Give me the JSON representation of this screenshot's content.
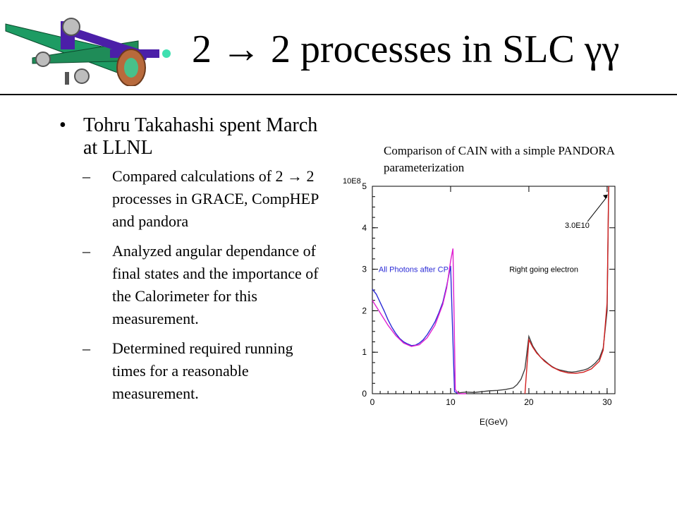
{
  "title": {
    "prefix": "2 ",
    "arrow": "→",
    "suffix": " 2 processes in SLC γγ"
  },
  "bullet": {
    "text": "Tohru Takahashi spent March at LLNL",
    "subitems": [
      "Compared calculations of 2 → 2 processes in GRACE, CompHEP and pandora",
      "Analyzed angular dependance of final states and the importance of the Calorimeter for this measurement.",
      "Determined required running times for a reasonable measurement."
    ]
  },
  "caption": "Comparison of CAIN with a simple PANDORA parameterization",
  "chart_data": {
    "type": "line",
    "xlabel": "E(GeV)",
    "y_scale_label": "10E8",
    "xlim": [
      0,
      31
    ],
    "ylim": [
      0,
      5
    ],
    "x_ticks": [
      "0",
      "10",
      "20",
      "30"
    ],
    "y_ticks": [
      "0",
      "1",
      "2",
      "3",
      "4",
      "5"
    ],
    "annotations": {
      "photons": "All Photons after CP",
      "electron": "Right going electron",
      "peak": "3.0E10"
    },
    "colors": {
      "photon_hist": "#2b2bd6",
      "photon_fit": "#e020d0",
      "electron_hist": "#404040",
      "electron_fit": "#d22020"
    },
    "series": [
      {
        "values_x": [
          0,
          0.5,
          1,
          1.5,
          2,
          2.5,
          3,
          3.5,
          4,
          4.5,
          5,
          5.5,
          6,
          6.5,
          7,
          7.5,
          8,
          8.5,
          9,
          9.5,
          10,
          10.5,
          11
        ],
        "values_y": [
          2.52,
          2.4,
          2.2,
          2.0,
          1.78,
          1.6,
          1.45,
          1.33,
          1.25,
          1.2,
          1.16,
          1.17,
          1.22,
          1.3,
          1.42,
          1.57,
          1.73,
          1.95,
          2.2,
          2.6,
          3.08,
          0.05,
          0.0
        ]
      },
      {
        "values_x": [
          0,
          1,
          2,
          3,
          4,
          5,
          6,
          7,
          8,
          9,
          9.5,
          10,
          10.3,
          10.6,
          11,
          12
        ],
        "values_y": [
          2.25,
          1.95,
          1.65,
          1.4,
          1.22,
          1.14,
          1.18,
          1.35,
          1.65,
          2.15,
          2.55,
          3.2,
          3.5,
          0.1,
          0.0,
          0.0
        ]
      },
      {
        "values_x": [
          11,
          12,
          13,
          14,
          15,
          16,
          17,
          18,
          18.5,
          19,
          19.5,
          20,
          20.5,
          21,
          21.5,
          22,
          22.5,
          23,
          23.5,
          24,
          24.5,
          25,
          25.5,
          26,
          26.5,
          27,
          27.5,
          28,
          28.5,
          29,
          29.5,
          30,
          30.2
        ],
        "values_y": [
          0.02,
          0.04,
          0.03,
          0.05,
          0.07,
          0.08,
          0.1,
          0.14,
          0.22,
          0.35,
          0.6,
          1.38,
          1.15,
          1.0,
          0.88,
          0.8,
          0.72,
          0.65,
          0.6,
          0.57,
          0.55,
          0.53,
          0.52,
          0.53,
          0.55,
          0.57,
          0.6,
          0.66,
          0.74,
          0.85,
          1.1,
          2.0,
          5.0
        ]
      },
      {
        "values_x": [
          19.5,
          20,
          20.5,
          21,
          22,
          23,
          24,
          25,
          26,
          27,
          28,
          29,
          29.5,
          30,
          30.2
        ],
        "values_y": [
          0.0,
          1.3,
          1.12,
          0.98,
          0.78,
          0.64,
          0.55,
          0.5,
          0.49,
          0.52,
          0.6,
          0.78,
          1.05,
          2.2,
          5.0
        ]
      }
    ]
  }
}
